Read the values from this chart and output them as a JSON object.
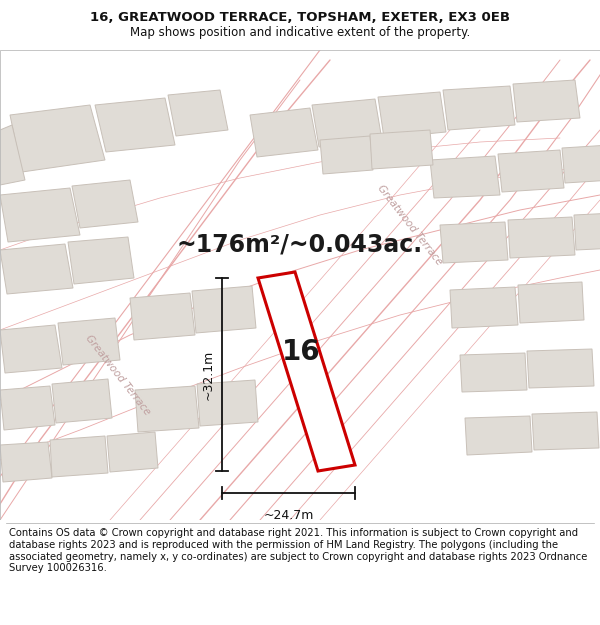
{
  "title_line1": "16, GREATWOOD TERRACE, TOPSHAM, EXETER, EX3 0EB",
  "title_line2": "Map shows position and indicative extent of the property.",
  "area_text": "~176m²/~0.043ac.",
  "label_number": "16",
  "dim_vertical": "~32.1m",
  "dim_horizontal": "~24.7m",
  "footer_text": "Contains OS data © Crown copyright and database right 2021. This information is subject to Crown copyright and database rights 2023 and is reproduced with the permission of HM Land Registry. The polygons (including the associated geometry, namely x, y co-ordinates) are subject to Crown copyright and database rights 2023 Ordnance Survey 100026316.",
  "bg_color": "#ffffff",
  "map_bg": "#f7f5f2",
  "building_fill": "#e0dcd6",
  "building_stroke": "#c8c0b8",
  "highlight_fill": "#ffffff",
  "highlight_stroke": "#cc0000",
  "road_color": "#e8a8a8",
  "road_stroke": "#d89090",
  "road_label_color": "#c0a0a0",
  "dim_color": "#111111",
  "title_fontsize": 9.5,
  "subtitle_fontsize": 8.5,
  "area_fontsize": 17,
  "label_fontsize": 20,
  "dim_fontsize": 9,
  "footer_fontsize": 7.2
}
